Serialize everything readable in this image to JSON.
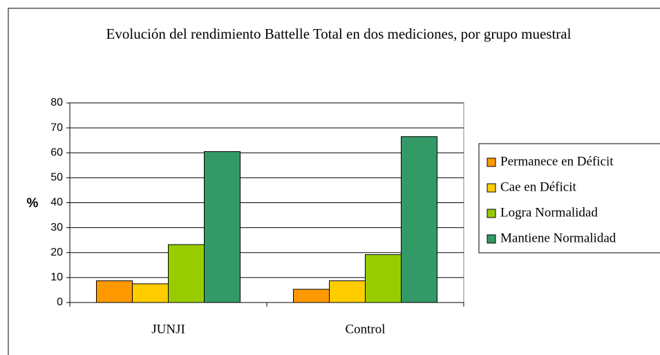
{
  "chart_data": {
    "type": "bar",
    "title": "Evolución del rendimiento Battelle Total en dos mediciones, por grupo muestral",
    "y_label": "%",
    "categories": [
      "JUNJI",
      "Control"
    ],
    "series": [
      {
        "name": "Permanece en Déficit",
        "color": "#ff9900",
        "values": [
          8.7,
          5.3
        ]
      },
      {
        "name": "Cae en Déficit",
        "color": "#ffcc00",
        "values": [
          7.5,
          8.7
        ]
      },
      {
        "name": "Logra Normalidad",
        "color": "#99cc00",
        "values": [
          23.2,
          19.2
        ]
      },
      {
        "name": "Mantiene Normalidad",
        "color": "#339966",
        "values": [
          60.5,
          66.5
        ]
      }
    ],
    "ylim": [
      0,
      80
    ],
    "yticks": [
      0,
      10,
      20,
      30,
      40,
      50,
      60,
      70,
      80
    ],
    "grid": true,
    "legend": "right"
  }
}
